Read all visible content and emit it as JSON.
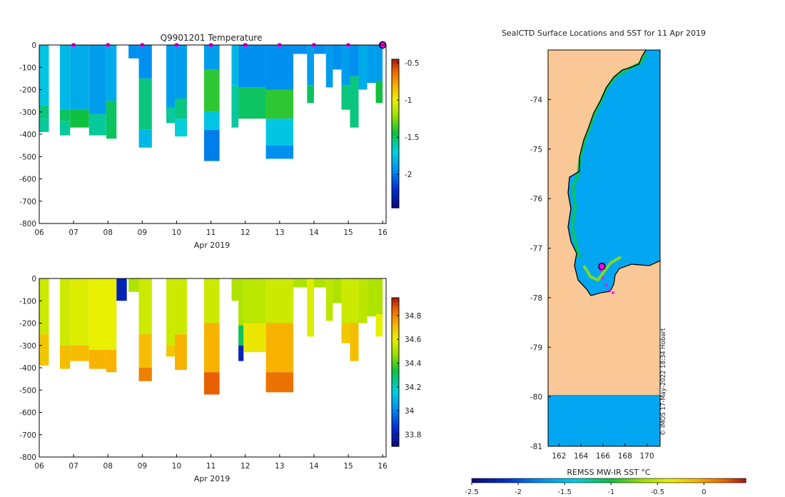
{
  "colors": {
    "land": "#f9c896",
    "ocean": "#03a6f0",
    "marker_magenta": "#ff00ff",
    "axis": "#000000",
    "text": "#222222"
  },
  "chart_data": [
    {
      "id": "temperature",
      "type": "heatmap",
      "title": "Q9901201  Temperature",
      "xlabel": "Apr 2019",
      "ylabel": "",
      "x_ticks": [
        "06",
        "07",
        "08",
        "09",
        "10",
        "11",
        "12",
        "13",
        "14",
        "15",
        "16"
      ],
      "xlim": [
        6,
        16.1
      ],
      "y_ticks": [
        "0",
        "-100",
        "-200",
        "-300",
        "-400",
        "-500",
        "-600",
        "-700",
        "-800"
      ],
      "ylim": [
        -800,
        0
      ],
      "colorbar": {
        "ticks": [
          "-0.5",
          "-1",
          "-1.5",
          "-2"
        ],
        "tick_values": [
          -0.5,
          -1,
          -1.5,
          -2
        ],
        "range": [
          -2.45,
          -0.45
        ]
      },
      "surface_markers_x": [
        7,
        8,
        9,
        10,
        11,
        12,
        13,
        14,
        15
      ],
      "latest_marker_x": 16,
      "profiles": [
        {
          "x0": 6.0,
          "x1": 6.28,
          "segments": [
            [
              0,
              -270,
              -1.75
            ],
            [
              -270,
              -330,
              -1.55
            ],
            [
              -330,
              -390,
              -1.6
            ]
          ]
        },
        {
          "x0": 6.6,
          "x1": 6.9,
          "segments": [
            [
              0,
              -290,
              -1.8
            ],
            [
              -290,
              -340,
              -1.5
            ],
            [
              -340,
              -405,
              -1.6
            ]
          ]
        },
        {
          "x0": 6.9,
          "x1": 7.45,
          "segments": [
            [
              0,
              -290,
              -1.85
            ],
            [
              -290,
              -370,
              -1.45
            ],
            [
              -370,
              -370,
              -1.6
            ]
          ]
        },
        {
          "x0": 7.45,
          "x1": 7.95,
          "segments": [
            [
              0,
              -310,
              -1.9
            ],
            [
              -310,
              -405,
              -1.6
            ]
          ]
        },
        {
          "x0": 7.95,
          "x1": 8.25,
          "segments": [
            [
              0,
              -250,
              -1.85
            ],
            [
              -250,
              -420,
              -1.5
            ]
          ]
        },
        {
          "x0": 8.6,
          "x1": 8.9,
          "segments": [
            [
              0,
              -60,
              -1.95
            ]
          ]
        },
        {
          "x0": 8.9,
          "x1": 9.28,
          "segments": [
            [
              0,
              -150,
              -1.95
            ],
            [
              -150,
              -380,
              -1.55
            ],
            [
              -380,
              -460,
              -1.8
            ]
          ]
        },
        {
          "x0": 9.7,
          "x1": 9.95,
          "segments": [
            [
              0,
              -280,
              -1.9
            ],
            [
              -280,
              -350,
              -1.6
            ]
          ]
        },
        {
          "x0": 9.95,
          "x1": 10.3,
          "segments": [
            [
              0,
              -240,
              -1.9
            ],
            [
              -240,
              -330,
              -1.55
            ],
            [
              -330,
              -410,
              -1.7
            ]
          ]
        },
        {
          "x0": 10.8,
          "x1": 11.25,
          "segments": [
            [
              0,
              -110,
              -1.9
            ],
            [
              -110,
              -300,
              -1.4
            ],
            [
              -300,
              -380,
              -1.75
            ],
            [
              -380,
              -520,
              -2.0
            ]
          ]
        },
        {
          "x0": 11.6,
          "x1": 11.8,
          "segments": [
            [
              0,
              -180,
              -1.8
            ],
            [
              -180,
              -370,
              -1.6
            ]
          ]
        },
        {
          "x0": 11.8,
          "x1": 12.6,
          "segments": [
            [
              0,
              -190,
              -1.95
            ],
            [
              -190,
              -330,
              -1.5
            ]
          ]
        },
        {
          "x0": 12.6,
          "x1": 13.4,
          "segments": [
            [
              0,
              -200,
              -1.95
            ],
            [
              -200,
              -330,
              -1.4
            ],
            [
              -330,
              -450,
              -1.75
            ],
            [
              -450,
              -510,
              -1.95
            ]
          ]
        },
        {
          "x0": 13.4,
          "x1": 13.8,
          "segments": [
            [
              0,
              -40,
              -1.95
            ]
          ]
        },
        {
          "x0": 13.8,
          "x1": 14.0,
          "segments": [
            [
              0,
              -180,
              -1.9
            ],
            [
              -180,
              -260,
              -1.5
            ]
          ]
        },
        {
          "x0": 14.0,
          "x1": 14.35,
          "segments": [
            [
              0,
              -40,
              -1.95
            ]
          ]
        },
        {
          "x0": 14.35,
          "x1": 14.55,
          "segments": [
            [
              0,
              -190,
              -1.9
            ]
          ]
        },
        {
          "x0": 14.55,
          "x1": 14.8,
          "segments": [
            [
              0,
              -110,
              -1.95
            ]
          ]
        },
        {
          "x0": 14.8,
          "x1": 15.05,
          "segments": [
            [
              0,
              -180,
              -1.9
            ],
            [
              -180,
              -290,
              -1.55
            ]
          ]
        },
        {
          "x0": 15.05,
          "x1": 15.3,
          "segments": [
            [
              0,
              -140,
              -1.95
            ],
            [
              -140,
              -370,
              -1.55
            ]
          ]
        },
        {
          "x0": 15.3,
          "x1": 15.55,
          "segments": [
            [
              0,
              -200,
              -1.85
            ]
          ]
        },
        {
          "x0": 15.55,
          "x1": 15.8,
          "segments": [
            [
              0,
              -170,
              -1.9
            ]
          ]
        },
        {
          "x0": 15.8,
          "x1": 16.0,
          "segments": [
            [
              0,
              -160,
              -1.9
            ],
            [
              -160,
              -260,
              -1.45
            ]
          ]
        }
      ]
    },
    {
      "id": "salinity",
      "type": "heatmap",
      "title": "",
      "xlabel": "Apr 2019",
      "ylabel": "",
      "x_ticks": [
        "06",
        "07",
        "08",
        "09",
        "10",
        "11",
        "12",
        "13",
        "14",
        "15",
        "16"
      ],
      "xlim": [
        6,
        16.1
      ],
      "y_ticks": [
        "0",
        "-100",
        "-200",
        "-300",
        "-400",
        "-500",
        "-600",
        "-700",
        "-800"
      ],
      "ylim": [
        -800,
        0
      ],
      "colorbar": {
        "ticks": [
          "34.8",
          "34.6",
          "34.4",
          "34.2",
          "34",
          "33.8"
        ],
        "tick_values": [
          34.8,
          34.6,
          34.4,
          34.2,
          34.0,
          33.8
        ],
        "range": [
          33.7,
          34.95
        ]
      },
      "profiles": [
        {
          "x0": 6.0,
          "x1": 6.28,
          "segments": [
            [
              0,
              -250,
              34.55
            ],
            [
              -250,
              -390,
              34.68
            ]
          ]
        },
        {
          "x0": 6.6,
          "x1": 6.9,
          "segments": [
            [
              0,
              -300,
              34.55
            ],
            [
              -300,
              -405,
              34.7
            ]
          ]
        },
        {
          "x0": 6.9,
          "x1": 7.45,
          "segments": [
            [
              0,
              -300,
              34.58
            ],
            [
              -300,
              -370,
              34.7
            ]
          ]
        },
        {
          "x0": 7.45,
          "x1": 7.95,
          "segments": [
            [
              0,
              -320,
              34.6
            ],
            [
              -320,
              -405,
              34.72
            ]
          ]
        },
        {
          "x0": 7.95,
          "x1": 8.25,
          "segments": [
            [
              0,
              -320,
              34.6
            ],
            [
              -320,
              -420,
              34.72
            ]
          ]
        },
        {
          "x0": 8.25,
          "x1": 8.55,
          "segments": [
            [
              0,
              -100,
              33.8
            ]
          ]
        },
        {
          "x0": 8.6,
          "x1": 8.9,
          "segments": [
            [
              0,
              -60,
              34.5
            ]
          ]
        },
        {
          "x0": 8.9,
          "x1": 9.28,
          "segments": [
            [
              0,
              -250,
              34.55
            ],
            [
              -250,
              -400,
              34.7
            ],
            [
              -400,
              -460,
              34.8
            ]
          ]
        },
        {
          "x0": 9.7,
          "x1": 9.95,
          "segments": [
            [
              0,
              -300,
              34.55
            ],
            [
              -300,
              -350,
              34.68
            ]
          ]
        },
        {
          "x0": 9.95,
          "x1": 10.3,
          "segments": [
            [
              0,
              -250,
              34.55
            ],
            [
              -250,
              -410,
              34.72
            ]
          ]
        },
        {
          "x0": 10.8,
          "x1": 11.25,
          "segments": [
            [
              0,
              -200,
              34.55
            ],
            [
              -200,
              -420,
              34.72
            ],
            [
              -420,
              -520,
              34.85
            ]
          ]
        },
        {
          "x0": 11.6,
          "x1": 11.8,
          "segments": [
            [
              0,
              -100,
              34.5
            ]
          ]
        },
        {
          "x0": 11.8,
          "x1": 11.95,
          "segments": [
            [
              0,
              -210,
              34.5
            ],
            [
              -210,
              -300,
              34.3
            ],
            [
              -300,
              -370,
              33.8
            ]
          ]
        },
        {
          "x0": 11.95,
          "x1": 12.6,
          "segments": [
            [
              0,
              -200,
              34.52
            ],
            [
              -200,
              -330,
              34.62
            ]
          ]
        },
        {
          "x0": 12.6,
          "x1": 13.4,
          "segments": [
            [
              0,
              -200,
              34.55
            ],
            [
              -200,
              -420,
              34.72
            ],
            [
              -420,
              -510,
              34.82
            ]
          ]
        },
        {
          "x0": 13.4,
          "x1": 13.8,
          "segments": [
            [
              0,
              -40,
              34.5
            ]
          ]
        },
        {
          "x0": 13.8,
          "x1": 14.0,
          "segments": [
            [
              0,
              -260,
              34.58
            ]
          ]
        },
        {
          "x0": 14.0,
          "x1": 14.35,
          "segments": [
            [
              0,
              -40,
              34.5
            ]
          ]
        },
        {
          "x0": 14.35,
          "x1": 14.55,
          "segments": [
            [
              0,
              -190,
              34.52
            ]
          ]
        },
        {
          "x0": 14.55,
          "x1": 14.8,
          "segments": [
            [
              0,
              -110,
              34.5
            ]
          ]
        },
        {
          "x0": 14.8,
          "x1": 15.05,
          "segments": [
            [
              0,
              -200,
              34.55
            ],
            [
              -200,
              -290,
              34.68
            ]
          ]
        },
        {
          "x0": 15.05,
          "x1": 15.3,
          "segments": [
            [
              0,
              -200,
              34.55
            ],
            [
              -200,
              -370,
              34.7
            ]
          ]
        },
        {
          "x0": 15.3,
          "x1": 15.55,
          "segments": [
            [
              0,
              -200,
              34.52
            ]
          ]
        },
        {
          "x0": 15.55,
          "x1": 15.8,
          "segments": [
            [
              0,
              -170,
              34.5
            ]
          ]
        },
        {
          "x0": 15.8,
          "x1": 16.0,
          "segments": [
            [
              0,
              -160,
              34.5
            ],
            [
              -160,
              -260,
              34.6
            ]
          ]
        }
      ]
    },
    {
      "id": "sst_map",
      "type": "heatmap",
      "title": "SealCTD Surface Locations and SST for 11 Apr 2019",
      "xlabel": "",
      "ylabel": "",
      "x_ticks": [
        "162",
        "164",
        "166",
        "168",
        "170"
      ],
      "xlim": [
        161,
        171.2
      ],
      "y_ticks": [
        "-74",
        "-75",
        "-76",
        "-77",
        "-78",
        "-79",
        "-80",
        "-81"
      ],
      "ylim": [
        -81,
        -73
      ],
      "colorbar_label": "REMSS MW-IR SST °C",
      "colorbar": {
        "ticks": [
          "-2.5",
          "-2",
          "-1.5",
          "-1",
          "-0.5",
          "0"
        ],
        "tick_values": [
          -2.5,
          -2,
          -1.5,
          -1,
          -0.5,
          0
        ],
        "range": [
          -2.5,
          0.45
        ]
      },
      "sea_sst": -1.8,
      "coastal_sst": -1.1,
      "latest_location": [
        165.9,
        -77.37
      ],
      "track": [
        [
          165.8,
          -77.45
        ],
        [
          166.0,
          -77.6
        ],
        [
          166.3,
          -77.75
        ],
        [
          166.6,
          -77.85
        ],
        [
          166.9,
          -77.9
        ]
      ],
      "credit": "© IMOS 17-May-2022 18:34 Hobart"
    }
  ]
}
